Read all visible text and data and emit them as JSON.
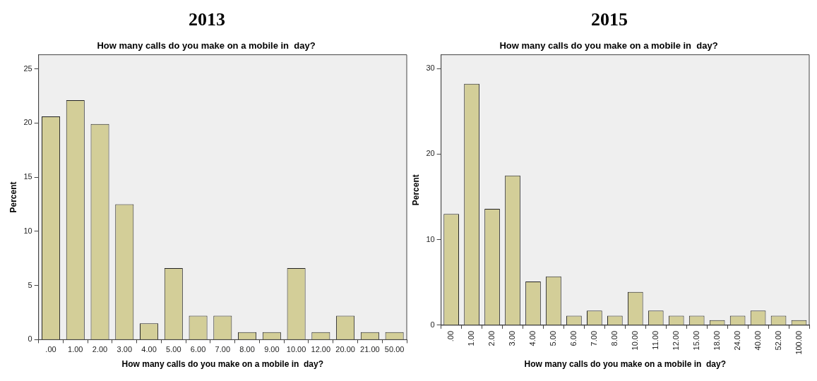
{
  "chart_data": [
    {
      "type": "bar",
      "title": "2013",
      "subtitle": "How many calls do you make on a mobile in  day?",
      "xlabel": "How many calls do you make on a mobile in  day?",
      "ylabel": "Percent",
      "categories": [
        ".00",
        "1.00",
        "2.00",
        "3.00",
        "4.00",
        "5.00",
        "6.00",
        "7.00",
        "8.00",
        "9.00",
        "10.00",
        "12.00",
        "20.00",
        "21.00",
        "50.00"
      ],
      "values": [
        20.6,
        22.1,
        19.9,
        12.5,
        1.5,
        6.6,
        2.2,
        2.2,
        0.7,
        0.7,
        6.6,
        0.7,
        2.2,
        0.7,
        0.7
      ],
      "color": "#d3ce98",
      "ylim": [
        0,
        26.3
      ],
      "yticks": [
        0,
        5,
        10,
        15,
        20,
        25
      ],
      "grid": false,
      "legend": false
    },
    {
      "type": "bar",
      "title": "2015",
      "subtitle": "How many calls do you make on a mobile in  day?",
      "xlabel": "How many calls do you make on a mobile in  day?",
      "ylabel": "Percent",
      "categories": [
        ".00",
        "1.00",
        "2.00",
        "3.00",
        "4.00",
        "5.00",
        "6.00",
        "7.00",
        "8.00",
        "10.00",
        "11.00",
        "12.00",
        "15.00",
        "18.00",
        "24.00",
        "40.00",
        "52.00",
        "100.00"
      ],
      "values": [
        13.0,
        28.2,
        13.6,
        17.5,
        5.1,
        5.7,
        1.1,
        1.7,
        1.1,
        3.9,
        1.7,
        1.1,
        1.1,
        0.6,
        1.1,
        1.7,
        1.1,
        0.6
      ],
      "color": "#d3ce98",
      "ylim": [
        0,
        31.6
      ],
      "yticks": [
        0,
        10,
        20,
        30
      ],
      "grid": false,
      "legend": false
    }
  ]
}
